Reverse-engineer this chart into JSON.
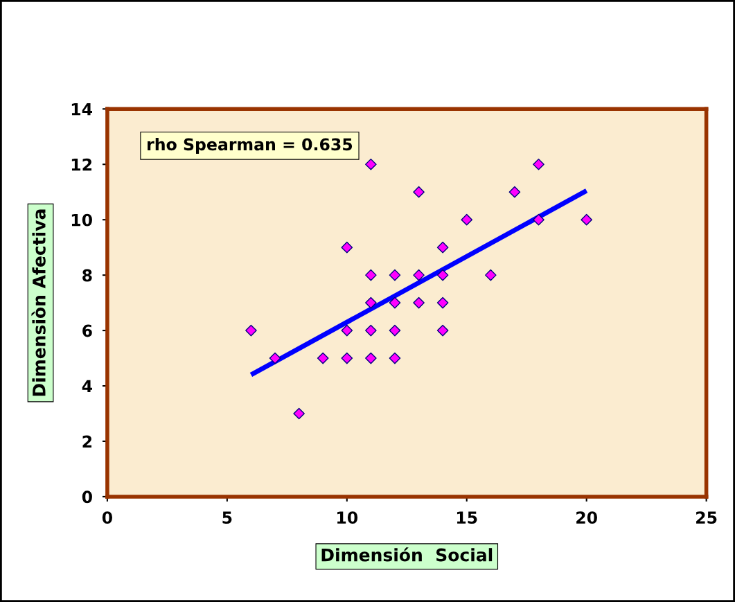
{
  "chart_data": {
    "type": "scatter",
    "xlabel": "Dimensión  Social",
    "ylabel": "Dimensiòn Afectiva",
    "annotations": [
      "rho Spearman = 0.635"
    ],
    "series": [
      {
        "color": "#ff00ff",
        "marker": "diamond",
        "x": [
          6,
          7,
          8,
          9,
          10,
          10,
          10,
          11,
          11,
          11,
          11,
          11,
          12,
          12,
          12,
          12,
          13,
          13,
          13,
          14,
          14,
          14,
          14,
          15,
          16,
          17,
          18,
          18,
          20
        ],
        "values": [
          6,
          5,
          3,
          5,
          9,
          6,
          5,
          12,
          8,
          7,
          6,
          5,
          8,
          7,
          6,
          5,
          11,
          8,
          7,
          9,
          8,
          7,
          6,
          10,
          8,
          11,
          12,
          10,
          10
        ]
      },
      {
        "type": "line",
        "color": "#0000ff",
        "marker": "none",
        "x": [
          6,
          20
        ],
        "values": [
          4.4,
          11.05
        ]
      }
    ],
    "xlim": [
      0,
      25
    ],
    "xticks": [
      0,
      5,
      10,
      15,
      20,
      25
    ],
    "ylim": [
      0,
      14
    ],
    "yticks": [
      0,
      2,
      4,
      6,
      8,
      10,
      12,
      14
    ],
    "grid": false,
    "legend": false
  }
}
